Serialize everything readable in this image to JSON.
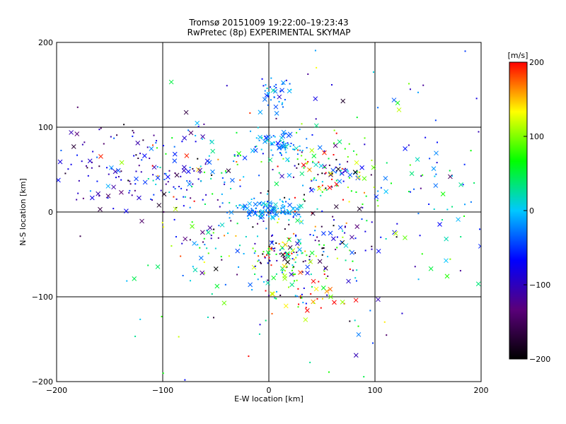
{
  "chart_data": {
    "type": "scatter",
    "title": "Tromsø 20151009 19:22:00–19:23:43",
    "subtitle": "RwPretec (8p) EXPERIMENTAL SKYMAP",
    "xlabel": "E-W location [km]",
    "ylabel": "N-S location [km]",
    "xlim": [
      -200,
      200
    ],
    "ylim": [
      -200,
      200
    ],
    "xticks": [
      -200,
      -100,
      0,
      100,
      200
    ],
    "yticks": [
      -200,
      -100,
      0,
      100,
      200
    ],
    "grid": true,
    "marker_types": [
      "dot",
      "x"
    ],
    "colorbar": {
      "label": "[m/s]",
      "range": [
        -200,
        200
      ],
      "ticks": [
        -200,
        -100,
        0,
        100,
        200
      ],
      "stops": [
        "#000000",
        "#5a007a",
        "#0000ff",
        "#00c8ff",
        "#00ff00",
        "#ffff00",
        "#ff0000"
      ]
    },
    "clusters": [
      {
        "x": -150,
        "y": 50,
        "sx": 30,
        "sy": 25,
        "n": 90,
        "v": -110,
        "vs": 45
      },
      {
        "x": -85,
        "y": 45,
        "sx": 30,
        "sy": 30,
        "n": 70,
        "v": -60,
        "vs": 60
      },
      {
        "x": -50,
        "y": 40,
        "sx": 20,
        "sy": 20,
        "n": 30,
        "v": -40,
        "vs": 110
      },
      {
        "x": -60,
        "y": -30,
        "sx": 25,
        "sy": 25,
        "n": 40,
        "v": -20,
        "vs": 110
      },
      {
        "x": 5,
        "y": 140,
        "sx": 8,
        "sy": 10,
        "n": 40,
        "v": -30,
        "vs": 25
      },
      {
        "x": 12,
        "y": 80,
        "sx": 12,
        "sy": 8,
        "n": 70,
        "v": -20,
        "vs": 25
      },
      {
        "x": 55,
        "y": 45,
        "sx": 25,
        "sy": 20,
        "n": 130,
        "v": 30,
        "vs": 140
      },
      {
        "x": 0,
        "y": 2,
        "sx": 15,
        "sy": 6,
        "n": 110,
        "v": -15,
        "vs": 20
      },
      {
        "x": 15,
        "y": -55,
        "sx": 18,
        "sy": 15,
        "n": 130,
        "v": 10,
        "vs": 130
      },
      {
        "x": 55,
        "y": -30,
        "sx": 25,
        "sy": 15,
        "n": 50,
        "v": -80,
        "vs": 90
      },
      {
        "x": 30,
        "y": -95,
        "sx": 20,
        "sy": 12,
        "n": 50,
        "v": 110,
        "vs": 120
      },
      {
        "x": 150,
        "y": 40,
        "sx": 35,
        "sy": 60,
        "n": 70,
        "v": -10,
        "vs": 60
      },
      {
        "x": 0,
        "y": 0,
        "sx": 100,
        "sy": 100,
        "n": 180,
        "v": 0,
        "vs": 100
      }
    ]
  }
}
